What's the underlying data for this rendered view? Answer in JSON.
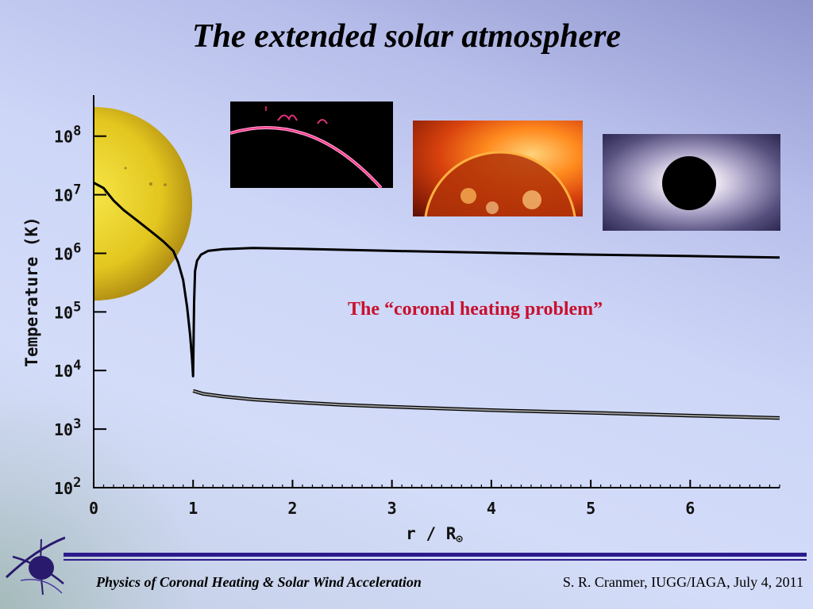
{
  "slide": {
    "title": "The extended solar atmosphere",
    "annotation": "The “coronal heating problem”",
    "footer_left": "Physics of Coronal Heating & Solar Wind Acceleration",
    "footer_right": "S. R. Cranmer, IUGG/IAGA, July 4, 2011"
  },
  "images": {
    "limb": "prominence-limb-photo",
    "xray": "coronal-xray-photo",
    "eclipse": "eclipse-corona-photo",
    "logo": "conference-logo-icon"
  },
  "colors": {
    "annotation": "#c8102e",
    "footer_rule": "#2c1a8c",
    "sun": "#e8cf22",
    "curve_main": "#000000",
    "curve_lower": "#9a9a9a"
  },
  "chart_data": {
    "type": "line",
    "title": "",
    "xlabel_main": "r / R",
    "xlabel_symbol": "⊙",
    "ylabel": "Temperature (K)",
    "xlim": [
      0,
      6.9
    ],
    "ylim_log10": [
      2,
      8.7
    ],
    "y_scale": "log",
    "x_ticks": [
      "0",
      "1",
      "2",
      "3",
      "4",
      "5",
      "6"
    ],
    "y_ticks": [
      {
        "base": "10",
        "exp": "2",
        "log10": 2
      },
      {
        "base": "10",
        "exp": "3",
        "log10": 3
      },
      {
        "base": "10",
        "exp": "4",
        "log10": 4
      },
      {
        "base": "10",
        "exp": "5",
        "log10": 5
      },
      {
        "base": "10",
        "exp": "6",
        "log10": 6
      },
      {
        "base": "10",
        "exp": "7",
        "log10": 7
      },
      {
        "base": "10",
        "exp": "8",
        "log10": 8
      }
    ],
    "series": [
      {
        "color": "#000000",
        "x": [
          0,
          0.1,
          0.2,
          0.3,
          0.45,
          0.6,
          0.7,
          0.8,
          0.85,
          0.9,
          0.94,
          0.97,
          0.99,
          1.0,
          1.01,
          1.02,
          1.04,
          1.08,
          1.15,
          1.3,
          1.6,
          2.0,
          2.5,
          3.0,
          4.0,
          5.0,
          6.0,
          6.9
        ],
        "y": [
          16000000.0,
          13000000.0,
          8000000.0,
          5500000.0,
          3500000.0,
          2200000.0,
          1600000.0,
          1100000.0,
          700000.0,
          350000.0,
          120000.0,
          40000.0,
          15000.0,
          8000.0,
          150000.0,
          500000.0,
          750000.0,
          950000.0,
          1100000.0,
          1180000.0,
          1230000.0,
          1200000.0,
          1150000.0,
          1100000.0,
          1020000.0,
          950000.0,
          900000.0,
          850000.0
        ]
      },
      {
        "color": "#9a9a9a",
        "x": [
          1.0,
          1.1,
          1.3,
          1.6,
          2.0,
          2.5,
          3.0,
          4.0,
          5.0,
          6.0,
          6.9
        ],
        "y": [
          4500,
          4000,
          3600,
          3200,
          2900,
          2600,
          2400,
          2100,
          1900,
          1700,
          1550
        ]
      }
    ],
    "grid": false,
    "legend": "none"
  }
}
